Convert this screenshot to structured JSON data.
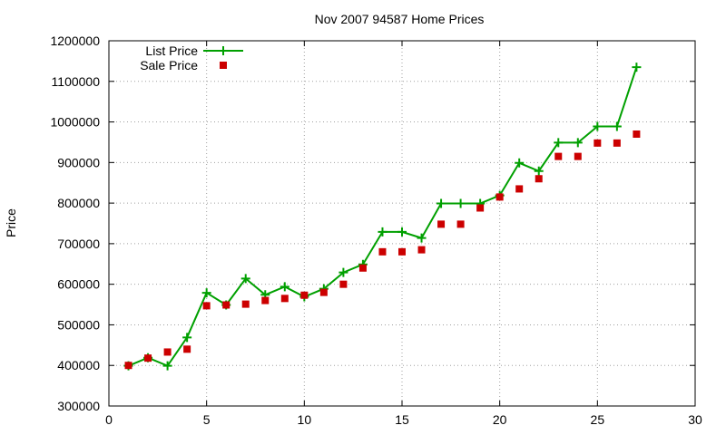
{
  "chart_data": {
    "type": "line",
    "title": "Nov 2007 94587 Home Prices",
    "xlabel": "",
    "ylabel": "Price",
    "xlim": [
      0,
      30
    ],
    "ylim": [
      300000,
      1200000
    ],
    "x_ticks": [
      0,
      5,
      10,
      15,
      20,
      25,
      30
    ],
    "y_ticks": [
      300000,
      400000,
      500000,
      600000,
      700000,
      800000,
      900000,
      1000000,
      1100000,
      1200000
    ],
    "x_tick_labels": [
      "0",
      "5",
      "10",
      "15",
      "20",
      "25",
      "30"
    ],
    "y_tick_labels": [
      "300000",
      "400000",
      "500000",
      "600000",
      "700000",
      "800000",
      "900000",
      "1000000",
      "1100000",
      "1200000"
    ],
    "grid": true,
    "legend_position": "top-left",
    "x": [
      1,
      2,
      3,
      4,
      5,
      6,
      7,
      8,
      9,
      10,
      11,
      12,
      13,
      14,
      15,
      16,
      17,
      18,
      19,
      20,
      21,
      22,
      23,
      24,
      25,
      26,
      27
    ],
    "series": [
      {
        "name": "List Price",
        "style": "line-points",
        "color": "#00a000",
        "values": [
          399000,
          419000,
          399000,
          469000,
          579000,
          549000,
          614000,
          574000,
          594000,
          569000,
          589000,
          629000,
          649000,
          729000,
          729000,
          714000,
          799000,
          799000,
          799000,
          819000,
          899000,
          879000,
          949000,
          949000,
          989000,
          989000,
          1135000
        ]
      },
      {
        "name": "Sale Price",
        "style": "points",
        "color": "#cc0000",
        "values": [
          400000,
          418000,
          433000,
          440000,
          547000,
          549000,
          551000,
          560000,
          565000,
          573000,
          580000,
          600000,
          640000,
          680000,
          680000,
          685000,
          748000,
          748000,
          788000,
          815000,
          835000,
          860000,
          915000,
          915000,
          948000,
          948000,
          970000
        ]
      }
    ]
  }
}
